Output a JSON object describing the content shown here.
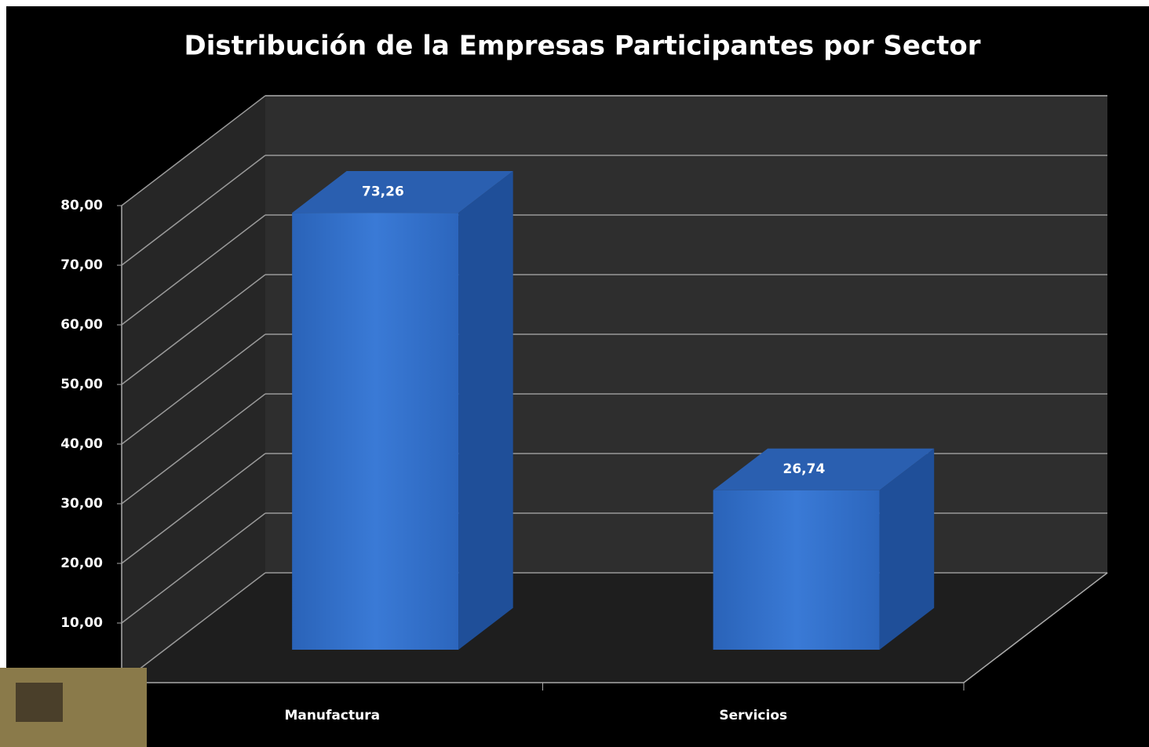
{
  "chart_data": {
    "type": "bar3d",
    "title": "Distribución de la Empresas Participantes por Sector",
    "categories": [
      "Manufactura",
      "Servicios"
    ],
    "values": [
      73.26,
      26.74
    ],
    "value_labels": [
      "73,26",
      "26,74"
    ],
    "color": "#2f6cc4",
    "ylim": [
      0,
      80
    ],
    "yticks": [
      {
        "value": 10,
        "label": "10,00"
      },
      {
        "value": 20,
        "label": "20,00"
      },
      {
        "value": 30,
        "label": "30,00"
      },
      {
        "value": 40,
        "label": "40,00"
      },
      {
        "value": 50,
        "label": "50,00"
      },
      {
        "value": 60,
        "label": "60,00"
      },
      {
        "value": 70,
        "label": "70,00"
      },
      {
        "value": 80,
        "label": "80,00"
      }
    ],
    "grid": true
  }
}
